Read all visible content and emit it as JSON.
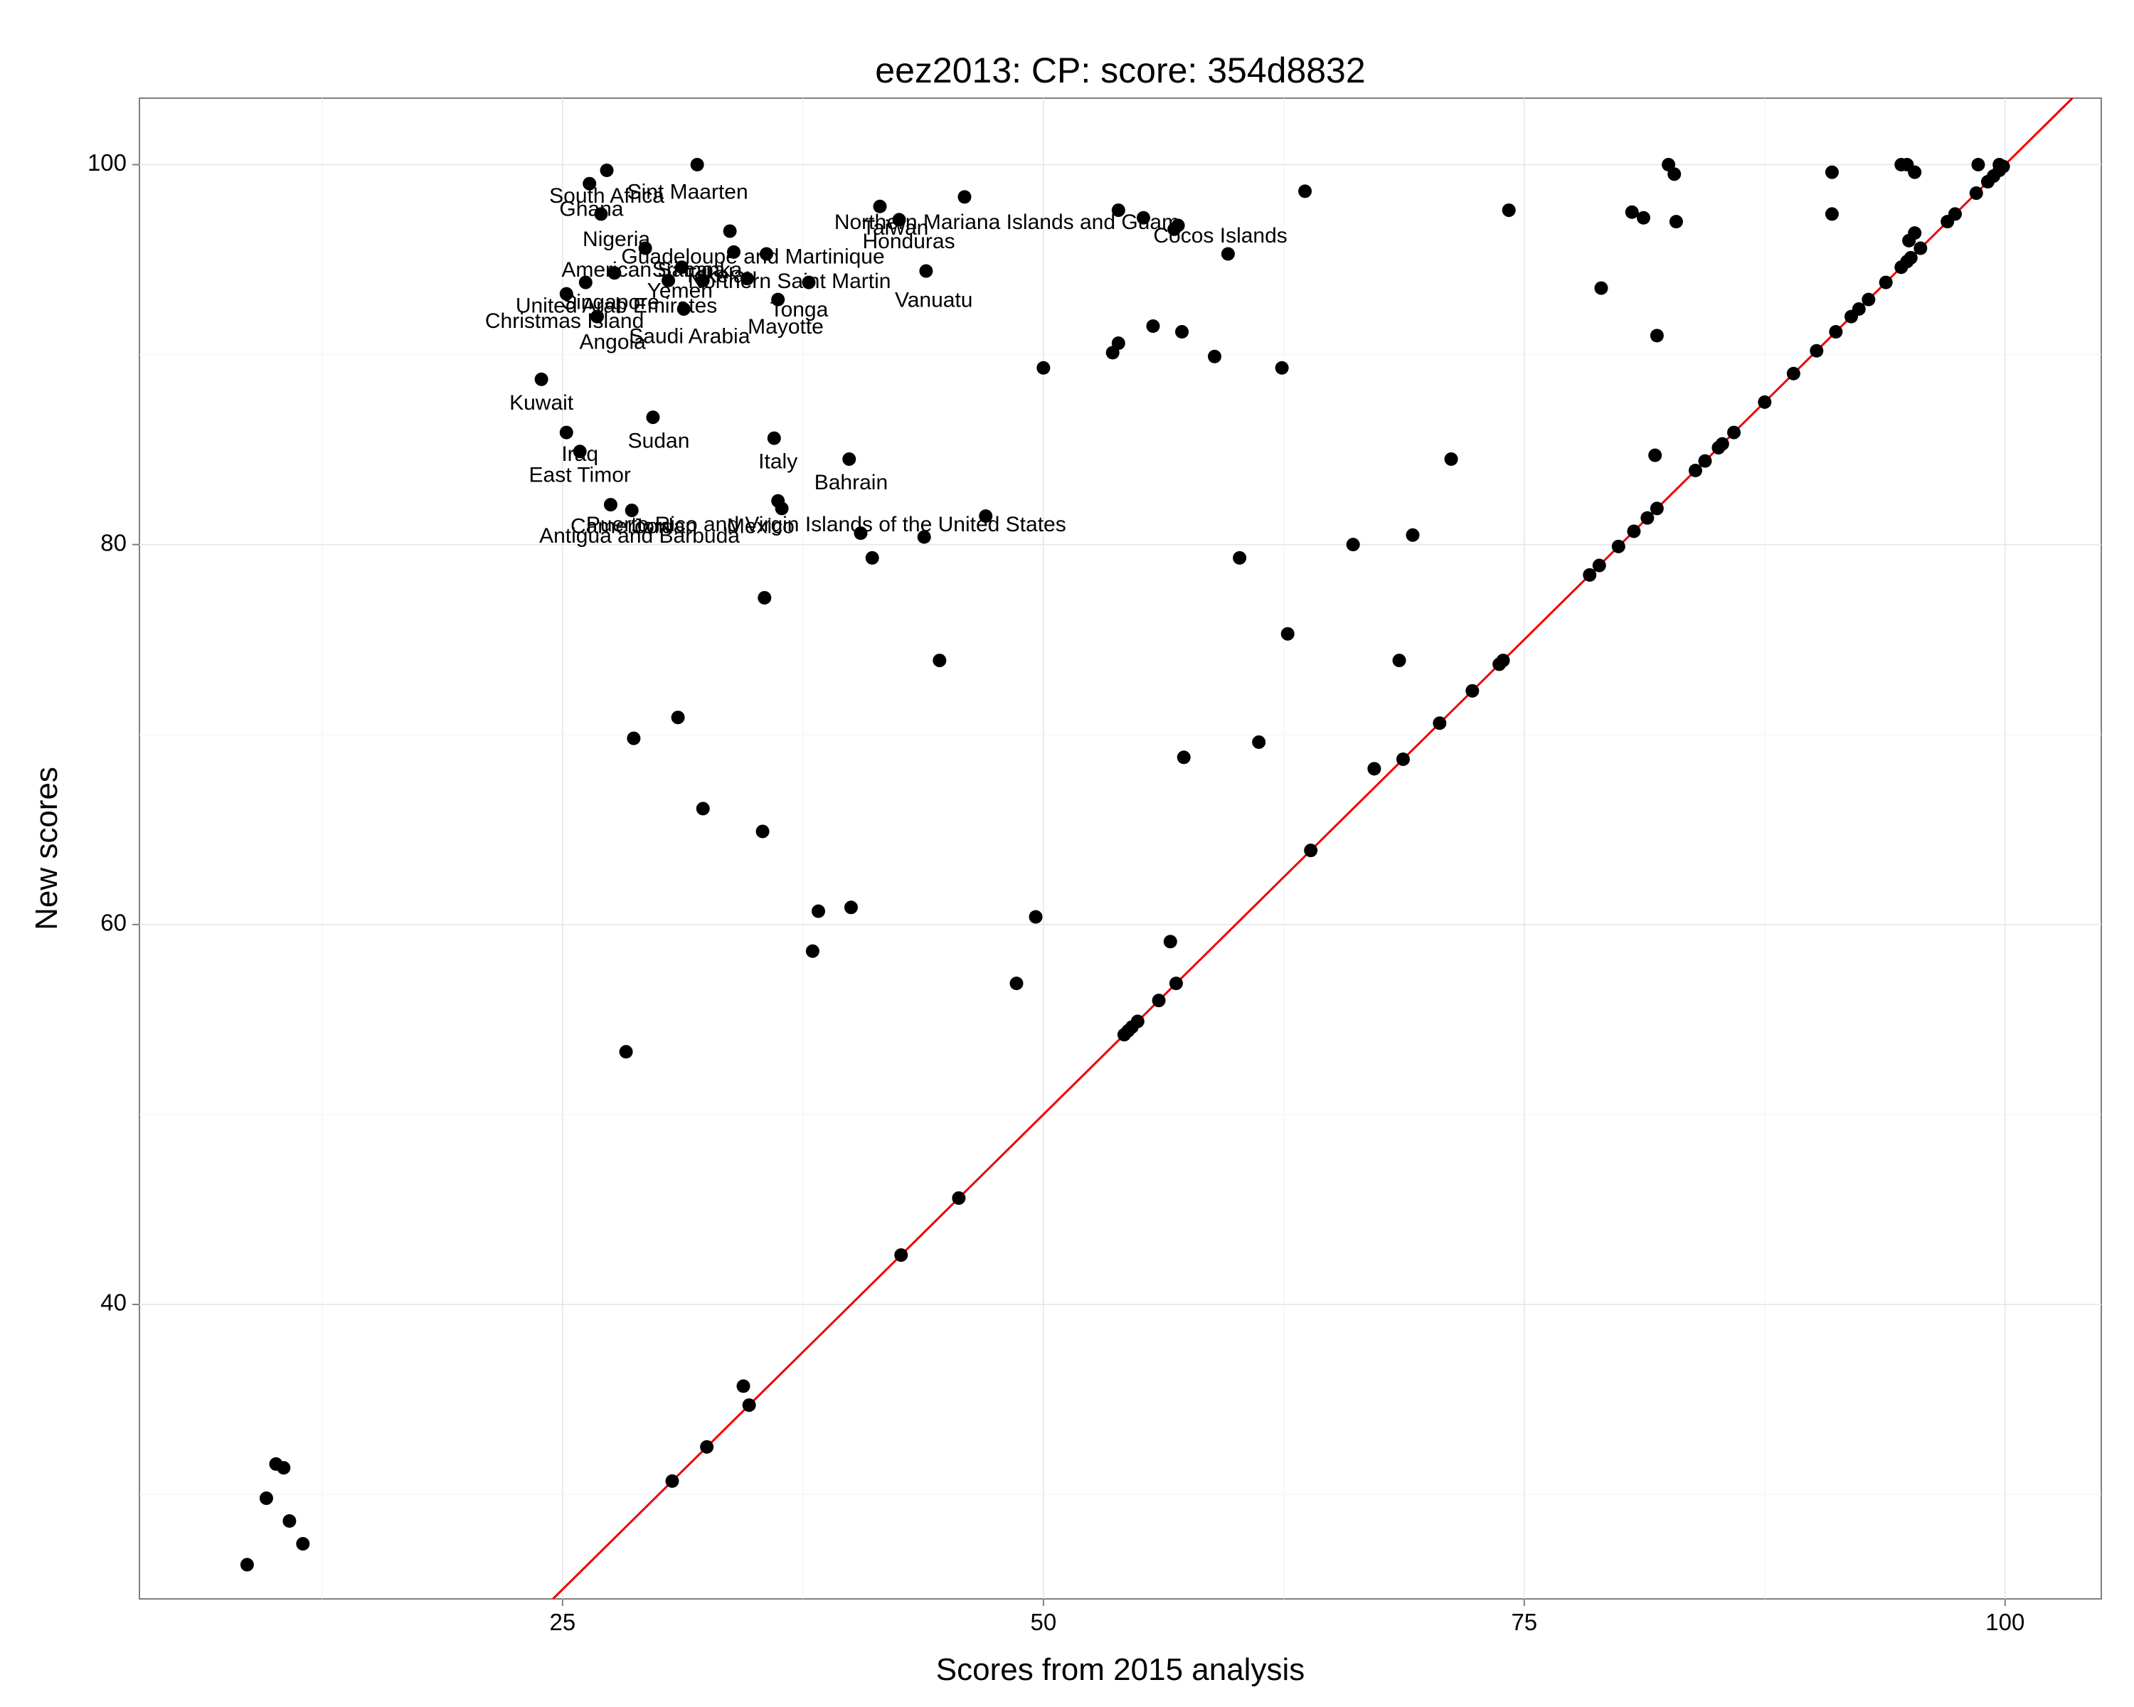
{
  "chart_data": {
    "type": "scatter",
    "title": "eez2013: CP: score: 354d8832",
    "xlabel": "Scores from 2015 analysis",
    "ylabel": "New scores",
    "xlim": [
      3,
      105
    ],
    "ylim": [
      24.5,
      103.5
    ],
    "x_ticks": [
      25,
      50,
      75,
      100
    ],
    "y_ticks": [
      40,
      60,
      80,
      100
    ],
    "grid": true,
    "reference_line": {
      "type": "identity",
      "slope": 1,
      "intercept": 0,
      "color": "#ee0000"
    },
    "point_color": "#000000",
    "points": [
      {
        "x": 27.3,
        "y": 99.7
      },
      {
        "x": 32.0,
        "y": 100.0
      },
      {
        "x": 26.4,
        "y": 99.0
      },
      {
        "x": 27.0,
        "y": 97.4
      },
      {
        "x": 33.7,
        "y": 96.5
      },
      {
        "x": 29.3,
        "y": 95.6
      },
      {
        "x": 41.5,
        "y": 97.8
      },
      {
        "x": 42.5,
        "y": 97.1
      },
      {
        "x": 45.9,
        "y": 98.3
      },
      {
        "x": 33.9,
        "y": 95.4
      },
      {
        "x": 35.6,
        "y": 95.3
      },
      {
        "x": 27.7,
        "y": 94.3
      },
      {
        "x": 26.2,
        "y": 93.8
      },
      {
        "x": 31.2,
        "y": 94.6
      },
      {
        "x": 30.5,
        "y": 93.9
      },
      {
        "x": 32.3,
        "y": 93.9
      },
      {
        "x": 34.6,
        "y": 94.0
      },
      {
        "x": 37.8,
        "y": 93.8
      },
      {
        "x": 43.9,
        "y": 94.4
      },
      {
        "x": 25.2,
        "y": 93.2
      },
      {
        "x": 31.3,
        "y": 92.4
      },
      {
        "x": 36.2,
        "y": 92.9
      },
      {
        "x": 26.8,
        "y": 92.0
      },
      {
        "x": 23.9,
        "y": 88.7
      },
      {
        "x": 25.2,
        "y": 85.9
      },
      {
        "x": 29.7,
        "y": 86.7
      },
      {
        "x": 25.9,
        "y": 84.9
      },
      {
        "x": 36.0,
        "y": 85.6
      },
      {
        "x": 39.9,
        "y": 84.5
      },
      {
        "x": 27.5,
        "y": 82.1
      },
      {
        "x": 28.6,
        "y": 81.8
      },
      {
        "x": 36.2,
        "y": 82.3
      },
      {
        "x": 36.4,
        "y": 81.9
      },
      {
        "x": 47.0,
        "y": 81.5
      },
      {
        "x": 40.5,
        "y": 80.6
      },
      {
        "x": 43.8,
        "y": 80.4
      },
      {
        "x": 41.1,
        "y": 79.3
      },
      {
        "x": 35.5,
        "y": 77.2
      },
      {
        "x": 44.6,
        "y": 73.9
      },
      {
        "x": 31.0,
        "y": 70.9
      },
      {
        "x": 28.7,
        "y": 69.8
      },
      {
        "x": 32.3,
        "y": 66.1
      },
      {
        "x": 35.4,
        "y": 64.9
      },
      {
        "x": 38.3,
        "y": 60.7
      },
      {
        "x": 40.0,
        "y": 60.9
      },
      {
        "x": 38.0,
        "y": 58.6
      },
      {
        "x": 28.3,
        "y": 53.3
      },
      {
        "x": 53.9,
        "y": 97.6
      },
      {
        "x": 55.2,
        "y": 97.2
      },
      {
        "x": 57.0,
        "y": 96.8
      },
      {
        "x": 56.8,
        "y": 96.6
      },
      {
        "x": 59.6,
        "y": 95.3
      },
      {
        "x": 63.6,
        "y": 98.6
      },
      {
        "x": 74.2,
        "y": 97.6
      },
      {
        "x": 55.7,
        "y": 91.5
      },
      {
        "x": 57.2,
        "y": 91.2
      },
      {
        "x": 53.9,
        "y": 90.6
      },
      {
        "x": 53.6,
        "y": 90.1
      },
      {
        "x": 58.9,
        "y": 89.9
      },
      {
        "x": 50.0,
        "y": 89.3
      },
      {
        "x": 62.4,
        "y": 89.3
      },
      {
        "x": 71.2,
        "y": 84.5
      },
      {
        "x": 69.2,
        "y": 80.5
      },
      {
        "x": 66.1,
        "y": 80.0
      },
      {
        "x": 60.2,
        "y": 79.3
      },
      {
        "x": 62.7,
        "y": 75.3
      },
      {
        "x": 68.5,
        "y": 73.9
      },
      {
        "x": 61.2,
        "y": 69.6
      },
      {
        "x": 57.3,
        "y": 68.8
      },
      {
        "x": 67.2,
        "y": 68.2
      },
      {
        "x": 49.6,
        "y": 60.4
      },
      {
        "x": 56.6,
        "y": 59.1
      },
      {
        "x": 48.6,
        "y": 56.9
      },
      {
        "x": 82.5,
        "y": 100.0
      },
      {
        "x": 82.8,
        "y": 99.5
      },
      {
        "x": 91.0,
        "y": 99.6
      },
      {
        "x": 94.6,
        "y": 100.0
      },
      {
        "x": 94.9,
        "y": 100.0
      },
      {
        "x": 95.3,
        "y": 99.6
      },
      {
        "x": 98.6,
        "y": 100.0
      },
      {
        "x": 99.7,
        "y": 100.0
      },
      {
        "x": 80.6,
        "y": 97.5
      },
      {
        "x": 81.2,
        "y": 97.2
      },
      {
        "x": 82.9,
        "y": 97.0
      },
      {
        "x": 91.0,
        "y": 97.4
      },
      {
        "x": 79.0,
        "y": 93.5
      },
      {
        "x": 81.9,
        "y": 91.0
      },
      {
        "x": 81.8,
        "y": 84.7
      },
      {
        "x": 8.6,
        "y": 26.3
      },
      {
        "x": 9.6,
        "y": 29.8
      },
      {
        "x": 10.1,
        "y": 31.6
      },
      {
        "x": 10.5,
        "y": 31.4
      },
      {
        "x": 10.8,
        "y": 28.6
      },
      {
        "x": 11.5,
        "y": 27.4
      },
      {
        "x": 30.7,
        "y": 30.7
      },
      {
        "x": 32.5,
        "y": 32.5
      },
      {
        "x": 34.4,
        "y": 35.7
      },
      {
        "x": 34.7,
        "y": 34.7
      },
      {
        "x": 42.6,
        "y": 42.6
      },
      {
        "x": 45.6,
        "y": 45.6
      },
      {
        "x": 54.2,
        "y": 54.2
      },
      {
        "x": 54.4,
        "y": 54.4
      },
      {
        "x": 54.6,
        "y": 54.6
      },
      {
        "x": 54.9,
        "y": 54.9
      },
      {
        "x": 56.0,
        "y": 56.0
      },
      {
        "x": 56.9,
        "y": 56.9
      },
      {
        "x": 63.9,
        "y": 63.9
      },
      {
        "x": 68.7,
        "y": 68.7
      },
      {
        "x": 70.6,
        "y": 70.6
      },
      {
        "x": 72.3,
        "y": 72.3
      },
      {
        "x": 73.7,
        "y": 73.7
      },
      {
        "x": 73.9,
        "y": 73.9
      },
      {
        "x": 78.4,
        "y": 78.4
      },
      {
        "x": 78.9,
        "y": 78.9
      },
      {
        "x": 79.9,
        "y": 79.9
      },
      {
        "x": 80.7,
        "y": 80.7
      },
      {
        "x": 81.4,
        "y": 81.4
      },
      {
        "x": 81.9,
        "y": 81.9
      },
      {
        "x": 83.9,
        "y": 83.9
      },
      {
        "x": 84.4,
        "y": 84.4
      },
      {
        "x": 85.1,
        "y": 85.1
      },
      {
        "x": 85.3,
        "y": 85.3
      },
      {
        "x": 85.9,
        "y": 85.9
      },
      {
        "x": 87.5,
        "y": 87.5
      },
      {
        "x": 89.0,
        "y": 89.0
      },
      {
        "x": 90.2,
        "y": 90.2
      },
      {
        "x": 91.2,
        "y": 91.2
      },
      {
        "x": 92.0,
        "y": 92.0
      },
      {
        "x": 92.4,
        "y": 92.4
      },
      {
        "x": 92.9,
        "y": 92.9
      },
      {
        "x": 93.8,
        "y": 93.8
      },
      {
        "x": 94.6,
        "y": 94.6
      },
      {
        "x": 94.9,
        "y": 94.9
      },
      {
        "x": 95.1,
        "y": 95.1
      },
      {
        "x": 95.6,
        "y": 95.6
      },
      {
        "x": 95.0,
        "y": 96.0
      },
      {
        "x": 95.3,
        "y": 96.4
      },
      {
        "x": 97.0,
        "y": 97.0
      },
      {
        "x": 97.4,
        "y": 97.4
      },
      {
        "x": 98.5,
        "y": 98.5
      },
      {
        "x": 99.1,
        "y": 99.1
      },
      {
        "x": 99.4,
        "y": 99.4
      },
      {
        "x": 99.7,
        "y": 99.7
      },
      {
        "x": 99.9,
        "y": 99.9
      }
    ],
    "labels": [
      {
        "text": "Sint Maarten",
        "x": 31.5,
        "y": 98.5
      },
      {
        "text": "South Africa",
        "x": 27.3,
        "y": 98.3
      },
      {
        "text": "Ghana",
        "x": 26.5,
        "y": 97.6
      },
      {
        "text": "Northern Mariana Islands and Guam",
        "x": 48.1,
        "y": 96.9
      },
      {
        "text": "Taiwan",
        "x": 42.3,
        "y": 96.6
      },
      {
        "text": "Cocos Islands",
        "x": 59.2,
        "y": 96.2
      },
      {
        "text": "Honduras",
        "x": 43.0,
        "y": 95.9
      },
      {
        "text": "Nigeria",
        "x": 27.8,
        "y": 96.0
      },
      {
        "text": "Guadeloupe and Martinique",
        "x": 34.9,
        "y": 95.1
      },
      {
        "text": "American Samoa",
        "x": 29.2,
        "y": 94.4
      },
      {
        "text": "Sri Lanka",
        "x": 32.0,
        "y": 94.4
      },
      {
        "text": "Tokelau",
        "x": 33.2,
        "y": 94.1
      },
      {
        "text": "Northern Saint Martin",
        "x": 36.8,
        "y": 93.8
      },
      {
        "text": "Yemen",
        "x": 31.1,
        "y": 93.3
      },
      {
        "text": "Vanuatu",
        "x": 44.3,
        "y": 92.8
      },
      {
        "text": "Singapore",
        "x": 27.5,
        "y": 92.7
      },
      {
        "text": "United Arab Emirates",
        "x": 27.8,
        "y": 92.5
      },
      {
        "text": "Tonga",
        "x": 37.3,
        "y": 92.3
      },
      {
        "text": "Christmas Island",
        "x": 25.1,
        "y": 91.7
      },
      {
        "text": "Mayotte",
        "x": 36.6,
        "y": 91.4
      },
      {
        "text": "Saudi Arabia",
        "x": 31.6,
        "y": 90.9
      },
      {
        "text": "Angola",
        "x": 27.6,
        "y": 90.6
      },
      {
        "text": "Kuwait",
        "x": 23.9,
        "y": 87.4
      },
      {
        "text": "Sudan",
        "x": 30.0,
        "y": 85.4
      },
      {
        "text": "Iraq",
        "x": 25.9,
        "y": 84.7
      },
      {
        "text": "Italy",
        "x": 36.2,
        "y": 84.3
      },
      {
        "text": "East Timor",
        "x": 25.9,
        "y": 83.6
      },
      {
        "text": "Bahrain",
        "x": 40.0,
        "y": 83.2
      },
      {
        "text": "Puerto Rico and Virgin Islands of the United States",
        "x": 38.7,
        "y": 81.0
      },
      {
        "text": "Cameroon",
        "x": 28.0,
        "y": 80.9
      },
      {
        "text": "Jordan",
        "x": 30.3,
        "y": 80.9
      },
      {
        "text": "Mexico",
        "x": 35.3,
        "y": 80.9
      },
      {
        "text": "Antigua and Barbuda",
        "x": 29.0,
        "y": 80.4
      }
    ]
  }
}
